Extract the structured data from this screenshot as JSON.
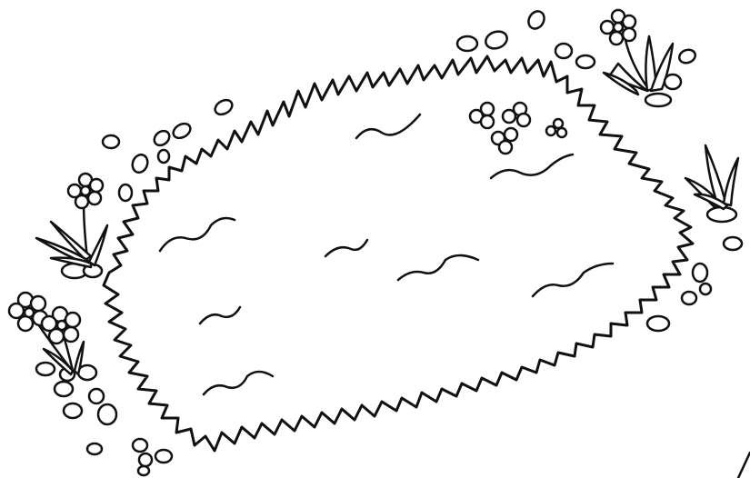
{
  "image": {
    "style": "black-and-white line art",
    "stroke_color": "#111111",
    "background_color": "#ffffff"
  },
  "scene": {
    "main_subject": "grass-patch",
    "surroundings": [
      "pebbles",
      "flowers",
      "grass-tufts",
      "clover-clusters"
    ]
  }
}
